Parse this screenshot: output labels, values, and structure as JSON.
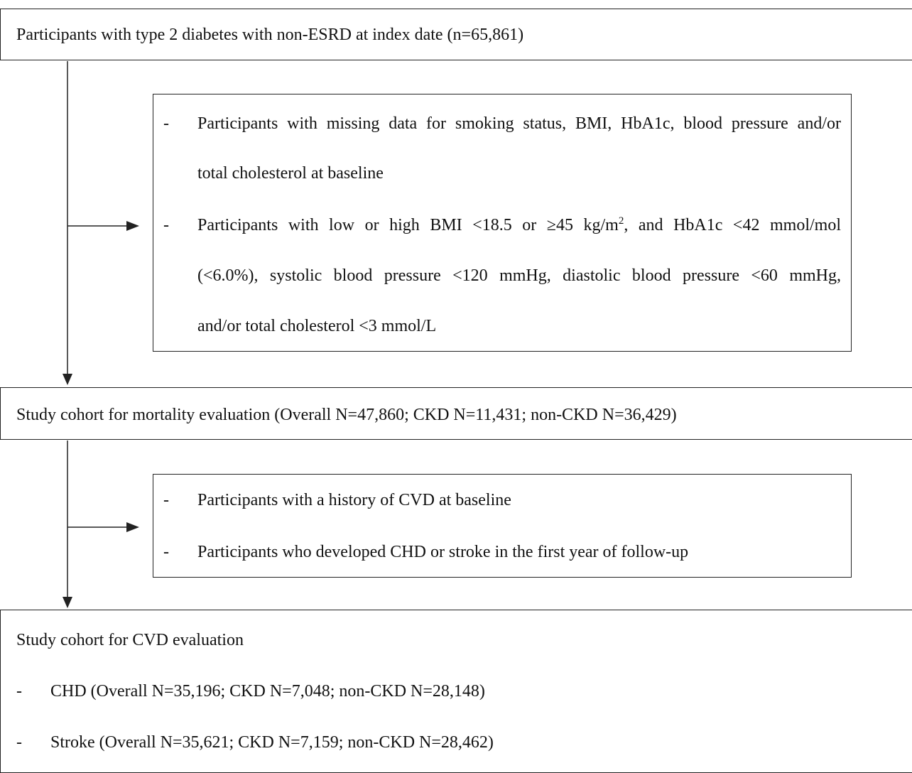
{
  "box1": {
    "text": "Participants with type 2 diabetes with non-ESRD at index date (n=65,861)"
  },
  "exclusion1": {
    "items": [
      {
        "dash": "-",
        "lines": [
          "Participants with missing data for smoking status, BMI, HbA1c, blood pressure and/or",
          "total cholesterol at baseline"
        ]
      },
      {
        "dash": "-",
        "line1_pre": "Participants with low or high BMI <18.5 or ≥45 kg/m",
        "line1_sup": "2",
        "line1_post": ", and HbA1c <42 mmol/mol",
        "lines": [
          "(<6.0%), systolic blood pressure <120 mmHg, diastolic blood pressure <60 mmHg,",
          "and/or total cholesterol <3 mmol/L"
        ]
      }
    ]
  },
  "box2": {
    "text": "Study cohort for mortality evaluation (Overall N=47,860; CKD N=11,431; non-CKD N=36,429)"
  },
  "exclusion2": {
    "items": [
      {
        "dash": "-",
        "text": "Participants with a history of CVD at baseline"
      },
      {
        "dash": "-",
        "text": "Participants who developed CHD or stroke in the first year of follow-up"
      }
    ]
  },
  "box3": {
    "title": "Study cohort for CVD evaluation",
    "items": [
      {
        "dash": "-",
        "text": "CHD (Overall N=35,196; CKD N=7,048; non-CKD N=28,148)"
      },
      {
        "dash": "-",
        "text": "Stroke (Overall N=35,621; CKD N=7,159; non-CKD N=28,462)"
      }
    ]
  }
}
